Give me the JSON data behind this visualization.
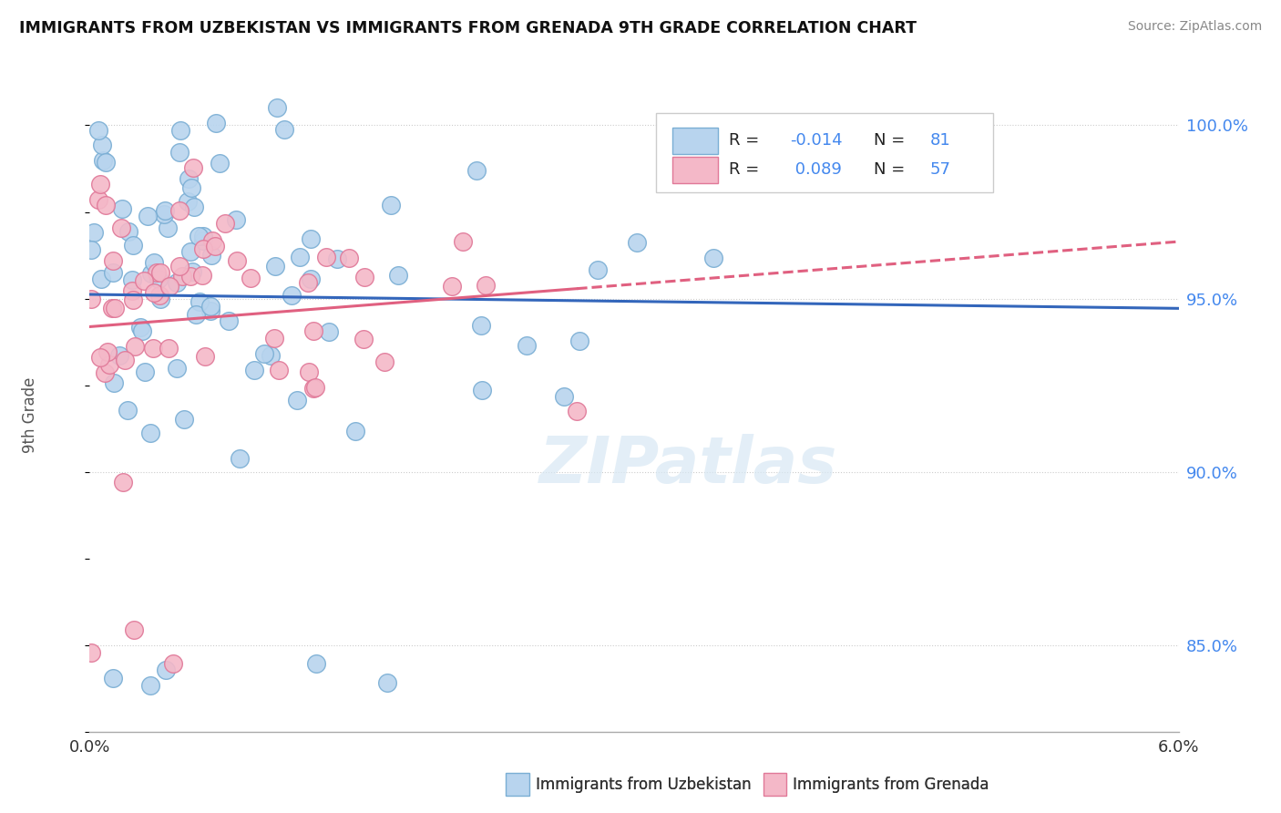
{
  "title": "IMMIGRANTS FROM UZBEKISTAN VS IMMIGRANTS FROM GRENADA 9TH GRADE CORRELATION CHART",
  "source": "Source: ZipAtlas.com",
  "ylabel": "9th Grade",
  "legend_label1": "Immigrants from Uzbekistan",
  "legend_label2": "Immigrants from Grenada",
  "R1": -0.014,
  "N1": 81,
  "R2": 0.089,
  "N2": 57,
  "color1_fill": "#b8d4ee",
  "color1_edge": "#7aaed4",
  "color2_fill": "#f4b8c8",
  "color2_edge": "#e07898",
  "line1_color": "#3366bb",
  "line2_color": "#e06080",
  "background_color": "#ffffff",
  "xlim": [
    0.0,
    0.06
  ],
  "ylim": [
    0.825,
    1.008
  ],
  "yticks": [
    0.85,
    0.9,
    0.95,
    1.0
  ],
  "ytick_labels": [
    "85.0%",
    "90.0%",
    "95.0%",
    "100.0%"
  ],
  "xtick_labels": [
    "0.0%",
    "6.0%"
  ],
  "title_color": "#111111",
  "source_color": "#888888",
  "yticklabel_color": "#4488ee",
  "text_color": "#333333"
}
